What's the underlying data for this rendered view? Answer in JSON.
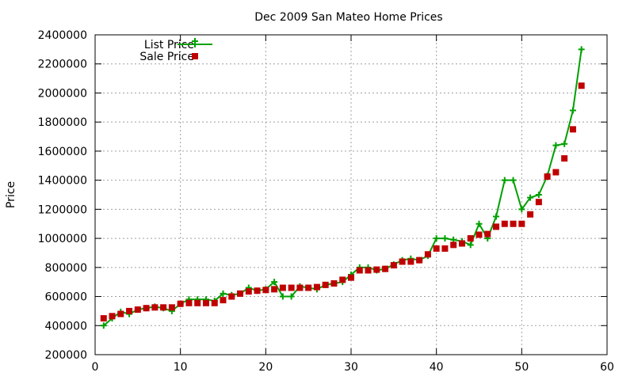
{
  "chart_data": {
    "type": "line",
    "title": "Dec 2009 San Mateo Home Prices",
    "xlabel": "",
    "ylabel": "Price",
    "xlim": [
      0,
      60
    ],
    "ylim": [
      200000,
      2400000
    ],
    "x_ticks": [
      "0",
      "10",
      "20",
      "30",
      "40",
      "50",
      "60"
    ],
    "y_ticks": [
      "200000",
      "400000",
      "600000",
      "800000",
      "1000000",
      "1200000",
      "1400000",
      "1600000",
      "1800000",
      "2000000",
      "2200000",
      "2400000"
    ],
    "grid": true,
    "legend_position": "top-left",
    "series": [
      {
        "name": "List Price",
        "style": "line-with-plus-markers",
        "color": "#00a000",
        "x": [
          1,
          2,
          3,
          4,
          5,
          6,
          7,
          8,
          9,
          10,
          11,
          12,
          13,
          14,
          15,
          16,
          17,
          18,
          19,
          20,
          21,
          22,
          23,
          24,
          25,
          26,
          27,
          28,
          29,
          30,
          31,
          32,
          33,
          34,
          35,
          36,
          37,
          38,
          39,
          40,
          41,
          42,
          43,
          44,
          45,
          46,
          47,
          48,
          49,
          50,
          51,
          52,
          53,
          54,
          55,
          56,
          57
        ],
        "values": [
          400000,
          450000,
          495000,
          480000,
          510000,
          520000,
          530000,
          520000,
          500000,
          550000,
          580000,
          580000,
          580000,
          570000,
          620000,
          610000,
          620000,
          660000,
          640000,
          650000,
          700000,
          600000,
          600000,
          670000,
          660000,
          650000,
          680000,
          690000,
          700000,
          750000,
          800000,
          800000,
          780000,
          790000,
          820000,
          850000,
          860000,
          850000,
          880000,
          1000000,
          1000000,
          990000,
          980000,
          955000,
          1100000,
          1000000,
          1150000,
          1400000,
          1400000,
          1200000,
          1280000,
          1300000,
          1430000,
          1640000,
          1650000,
          1880000,
          2300000
        ]
      },
      {
        "name": "Sale Price",
        "style": "square-markers",
        "color": "#c00000",
        "x": [
          1,
          2,
          3,
          4,
          5,
          6,
          7,
          8,
          9,
          10,
          11,
          12,
          13,
          14,
          15,
          16,
          17,
          18,
          19,
          20,
          21,
          22,
          23,
          24,
          25,
          26,
          27,
          28,
          29,
          30,
          31,
          32,
          33,
          34,
          35,
          36,
          37,
          38,
          39,
          40,
          41,
          42,
          43,
          44,
          45,
          46,
          47,
          48,
          49,
          50,
          51,
          52,
          53,
          54,
          55,
          56,
          57
        ],
        "values": [
          450000,
          465000,
          480000,
          500000,
          510000,
          520000,
          525000,
          525000,
          525000,
          550000,
          555000,
          555000,
          555000,
          555000,
          575000,
          600000,
          620000,
          635000,
          640000,
          645000,
          650000,
          660000,
          660000,
          660000,
          660000,
          665000,
          680000,
          690000,
          715000,
          730000,
          780000,
          780000,
          785000,
          790000,
          815000,
          840000,
          840000,
          850000,
          890000,
          930000,
          930000,
          955000,
          965000,
          1000000,
          1025000,
          1030000,
          1080000,
          1100000,
          1100000,
          1100000,
          1165000,
          1250000,
          1425000,
          1455000,
          1550000,
          1750000,
          2050000
        ]
      }
    ]
  }
}
